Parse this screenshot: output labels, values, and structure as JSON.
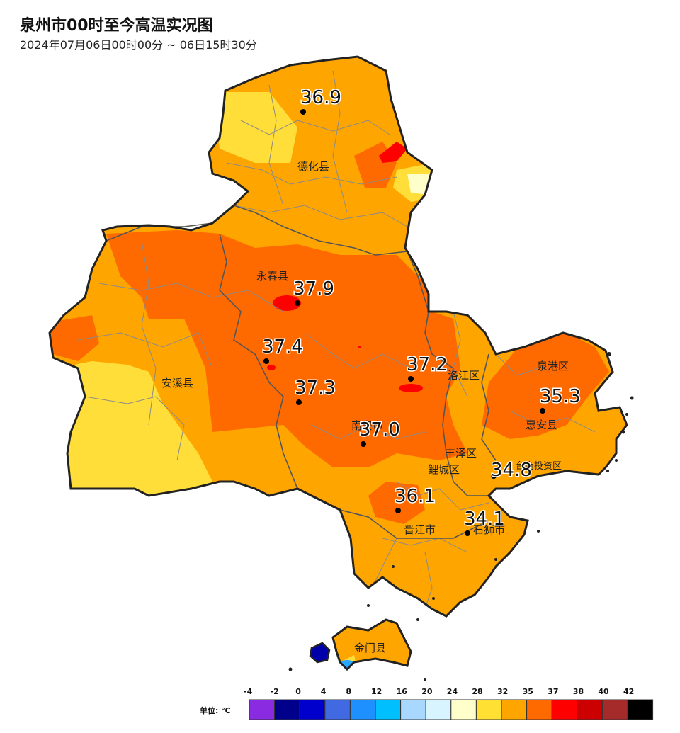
{
  "header": {
    "title": "泉州市00时至今高温实况图",
    "subtitle": "2024年07月06日00时00分 ~ 06日15时30分"
  },
  "map": {
    "county_labels": [
      {
        "id": "dehua",
        "text": "德化县"
      },
      {
        "id": "yongchun",
        "text": "永春县"
      },
      {
        "id": "anxi",
        "text": "安溪县"
      },
      {
        "id": "luojiang",
        "text": "洛江区"
      },
      {
        "id": "quangang",
        "text": "泉港区"
      },
      {
        "id": "huian",
        "text": "惠安县"
      },
      {
        "id": "nanan",
        "text": "南安市"
      },
      {
        "id": "fengze",
        "text": "丰泽区"
      },
      {
        "id": "licheng",
        "text": "鲤城区"
      },
      {
        "id": "taishang",
        "text": "台商投资区"
      },
      {
        "id": "jinjiang",
        "text": "晋江市"
      },
      {
        "id": "shishi",
        "text": "石狮市"
      },
      {
        "id": "jinmen",
        "text": "金门县"
      }
    ],
    "stations": [
      {
        "id": "dehua-station",
        "value": "36.9"
      },
      {
        "id": "yongchun-station",
        "value": "37.9"
      },
      {
        "id": "anxi-station-1",
        "value": "37.4"
      },
      {
        "id": "anxi-station-2",
        "value": "37.3"
      },
      {
        "id": "luojiang-station",
        "value": "37.2"
      },
      {
        "id": "nanan-station",
        "value": "37.0"
      },
      {
        "id": "quangang-station",
        "value": "35.3"
      },
      {
        "id": "taishang-station",
        "value": "34.8"
      },
      {
        "id": "jinjiang-station",
        "value": "36.1"
      },
      {
        "id": "shishi-station",
        "value": "34.1"
      }
    ]
  },
  "legend": {
    "unit_label": "单位: ℃",
    "ticks": [
      "-4",
      "-2",
      "0",
      "4",
      "8",
      "12",
      "16",
      "20",
      "24",
      "28",
      "32",
      "35",
      "37",
      "38",
      "40",
      "42"
    ],
    "colors": [
      "#8a2be2",
      "#00008b",
      "#0000cd",
      "#4169e1",
      "#1e90ff",
      "#00bfff",
      "#a8d8ff",
      "#d8f4ff",
      "#ffffcc",
      "#ffe033",
      "#ffa500",
      "#ff6a00",
      "#ff0000",
      "#cc0000",
      "#a52a2a",
      "#000000"
    ]
  },
  "colors": {
    "temp_28_32": "#ffffcc",
    "temp_32_35": "#ffde3a",
    "temp_35_37": "#ffa500",
    "temp_37_38": "#ff6a00",
    "temp_38_40": "#ff0000"
  }
}
